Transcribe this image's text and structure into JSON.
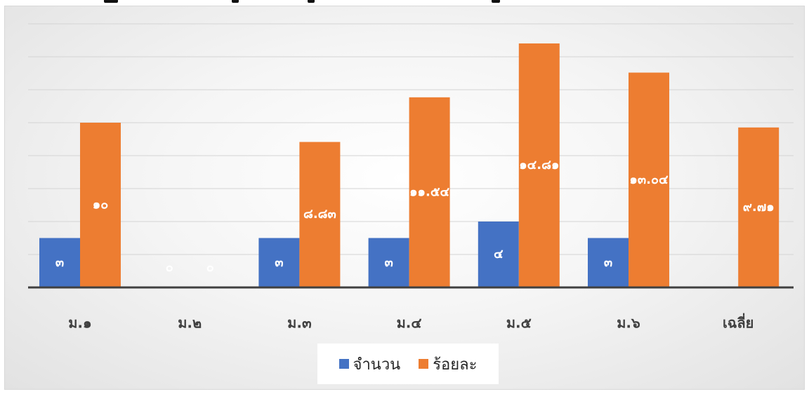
{
  "chart_data": {
    "type": "bar",
    "title": "",
    "xlabel": "",
    "ylabel": "",
    "ylim": [
      0,
      16
    ],
    "grid": true,
    "categories": [
      "ม.๑",
      "ม.๒",
      "ม.๓",
      "ม.๔",
      "ม.๕",
      "ม.๖",
      "เฉลี่ย"
    ],
    "series": [
      {
        "name": "จำนวน",
        "color": "#4472C4",
        "values": [
          3,
          0,
          3,
          3,
          4,
          3,
          null
        ],
        "labels": [
          "๓",
          "๐",
          "๓",
          "๓",
          "๔",
          "๓",
          ""
        ]
      },
      {
        "name": "ร้อยละ",
        "color": "#ED7D31",
        "values": [
          10,
          0,
          8.83,
          11.54,
          14.81,
          13.04,
          9.71
        ],
        "labels": [
          "๑๐",
          "๐",
          "๘.๘๓",
          "๑๑.๕๔",
          "๑๔.๘๑",
          "๑๓.๐๔",
          "๙.๗๑"
        ]
      }
    ],
    "legend_position": "bottom"
  }
}
